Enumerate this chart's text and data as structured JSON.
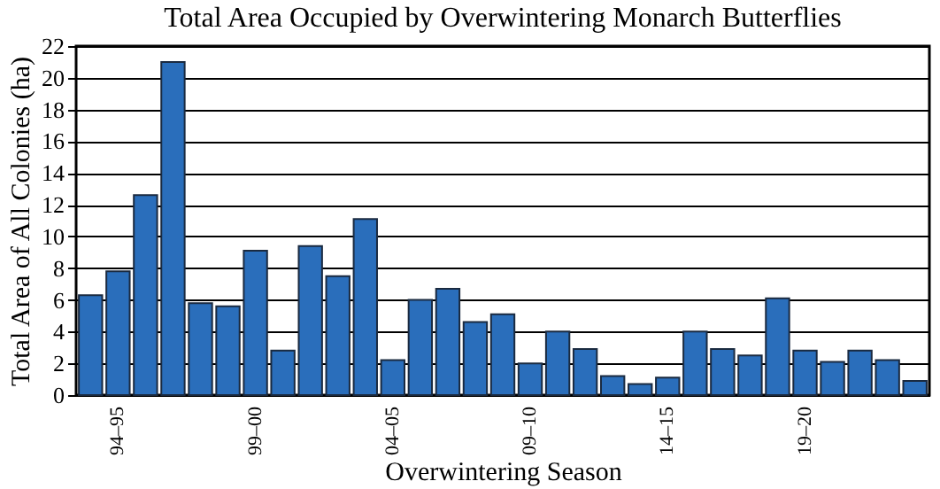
{
  "chart_data": {
    "type": "bar",
    "title": "Total Area Occupied by Overwintering Monarch Butterflies",
    "xlabel": "Overwintering Season",
    "ylabel": "Total Area of All Colonies (ha)",
    "categories": [
      null,
      "94–95",
      null,
      null,
      null,
      null,
      "99–00",
      null,
      null,
      null,
      null,
      "04–05",
      null,
      null,
      null,
      null,
      "09–10",
      null,
      null,
      null,
      null,
      "14–15",
      null,
      null,
      null,
      null,
      "19–20",
      null,
      null,
      null,
      null
    ],
    "values": [
      6.3,
      7.8,
      12.6,
      21.0,
      5.8,
      5.6,
      9.1,
      2.8,
      9.4,
      7.5,
      11.1,
      2.2,
      6.0,
      6.7,
      4.6,
      5.1,
      2.0,
      4.0,
      2.9,
      1.2,
      0.7,
      1.1,
      4.0,
      2.9,
      2.5,
      6.1,
      2.8,
      2.1,
      2.8,
      2.2,
      0.9
    ],
    "color": "#2a6ebb",
    "ylim": [
      0,
      22
    ],
    "yticks": [
      0,
      2,
      4,
      6,
      8,
      10,
      12,
      14,
      16,
      18,
      20,
      22
    ],
    "grid": "y"
  }
}
